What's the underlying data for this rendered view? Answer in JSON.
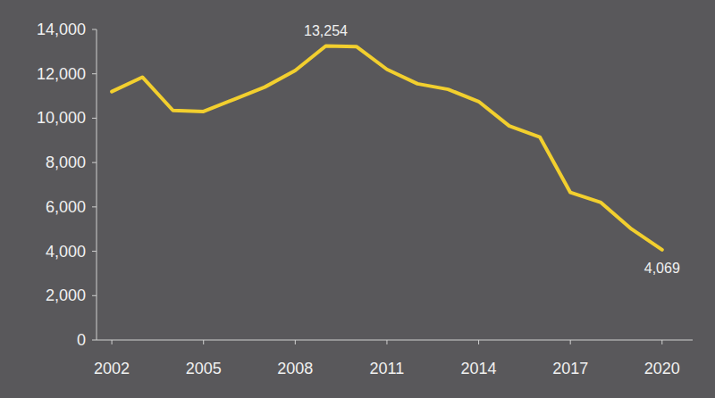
{
  "chart_data": {
    "type": "line",
    "x": [
      2002,
      2003,
      2004,
      2005,
      2006,
      2007,
      2008,
      2009,
      2010,
      2011,
      2012,
      2013,
      2014,
      2015,
      2016,
      2017,
      2018,
      2019,
      2020
    ],
    "values": [
      11200,
      11850,
      10350,
      10300,
      10850,
      11400,
      12150,
      13254,
      13230,
      12200,
      11550,
      11300,
      10750,
      9650,
      9150,
      6650,
      6200,
      5000,
      4069
    ],
    "color": "#f2cf2e",
    "xlim": [
      2001.5,
      2021
    ],
    "xticks": [
      2002,
      2005,
      2008,
      2011,
      2014,
      2017,
      2020
    ],
    "ylim": [
      0,
      14000
    ],
    "yticks": [
      0,
      {
        "value": 2000,
        "label": "2,000"
      },
      {
        "value": 4000,
        "label": "4,000"
      },
      {
        "value": 6000,
        "label": "6,000"
      },
      {
        "value": 8000,
        "label": "8,000"
      },
      {
        "value": 10000,
        "label": "10,000"
      },
      {
        "value": 12000,
        "label": "12,000"
      },
      {
        "value": 14000,
        "label": "14,000"
      }
    ],
    "grid": false,
    "annotations": [
      {
        "label": "13,254",
        "x": 2009,
        "y": 13254
      },
      {
        "label": "4,069",
        "x": 2020,
        "y": 4069
      }
    ]
  }
}
